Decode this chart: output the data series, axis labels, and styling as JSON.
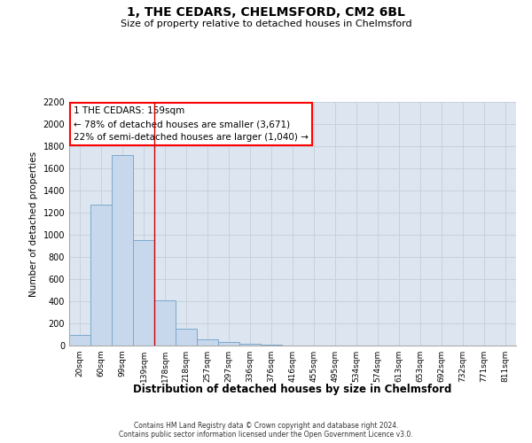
{
  "title": "1, THE CEDARS, CHELMSFORD, CM2 6BL",
  "subtitle": "Size of property relative to detached houses in Chelmsford",
  "xlabel": "Distribution of detached houses by size in Chelmsford",
  "ylabel": "Number of detached properties",
  "categories": [
    "20sqm",
    "60sqm",
    "99sqm",
    "139sqm",
    "178sqm",
    "218sqm",
    "257sqm",
    "297sqm",
    "336sqm",
    "376sqm",
    "416sqm",
    "455sqm",
    "495sqm",
    "534sqm",
    "574sqm",
    "613sqm",
    "653sqm",
    "692sqm",
    "732sqm",
    "771sqm",
    "811sqm"
  ],
  "values": [
    100,
    1270,
    1720,
    950,
    410,
    150,
    60,
    30,
    15,
    5,
    0,
    0,
    0,
    0,
    0,
    0,
    0,
    0,
    0,
    0,
    0
  ],
  "bar_color": "#c8d8ec",
  "bar_edge_color": "#7aa8cc",
  "grid_color": "#c8d0dc",
  "background_color": "#dde6f0",
  "ylim": [
    0,
    2200
  ],
  "yticks": [
    0,
    200,
    400,
    600,
    800,
    1000,
    1200,
    1400,
    1600,
    1800,
    2000,
    2200
  ],
  "red_line_x": 3.5,
  "annotation_text": "1 THE CEDARS: 159sqm\n← 78% of detached houses are smaller (3,671)\n22% of semi-detached houses are larger (1,040) →",
  "footnote1": "Contains HM Land Registry data © Crown copyright and database right 2024.",
  "footnote2": "Contains public sector information licensed under the Open Government Licence v3.0."
}
